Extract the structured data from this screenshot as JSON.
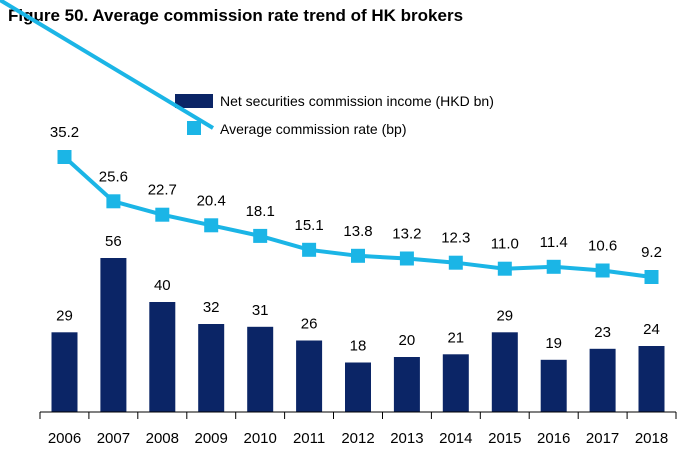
{
  "figure_title": "Figure 50. Average commission rate trend of HK brokers",
  "colors": {
    "bar": "#0b2566",
    "line": "#1bb5e6",
    "axis": "#000000"
  },
  "chart_data": {
    "type": "bar",
    "categories": [
      "2006",
      "2007",
      "2008",
      "2009",
      "2010",
      "2011",
      "2012",
      "2013",
      "2014",
      "2015",
      "2016",
      "2017",
      "2018"
    ],
    "series": [
      {
        "name": "Net securities commission income (HKD bn)",
        "type": "bar",
        "values": [
          29,
          56,
          40,
          32,
          31,
          26,
          18,
          20,
          21,
          29,
          19,
          23,
          24
        ]
      },
      {
        "name": "Average commission rate (bp)",
        "type": "line",
        "values": [
          35.2,
          25.6,
          22.7,
          20.4,
          18.1,
          15.1,
          13.8,
          13.2,
          12.3,
          11.0,
          11.4,
          10.6,
          9.2
        ]
      }
    ],
    "bar_labels": [
      "29",
      "56",
      "40",
      "32",
      "31",
      "26",
      "18",
      "20",
      "21",
      "29",
      "19",
      "23",
      "24"
    ],
    "line_labels": [
      "35.2",
      "25.6",
      "22.7",
      "20.4",
      "18.1",
      "15.1",
      "13.8",
      "13.2",
      "12.3",
      "11.0",
      "11.4",
      "10.6",
      "9.2"
    ],
    "legend_position": "top-center",
    "grid": false
  }
}
